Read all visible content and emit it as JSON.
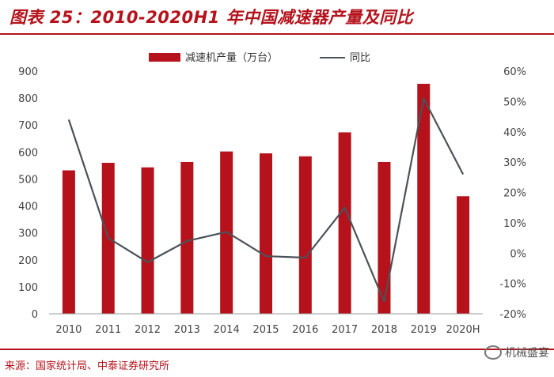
{
  "title": "图表 25：2010-2020H1 年中国减速器产量及同比",
  "source": "来源：国家统计局、中泰证券研究所",
  "watermark": "机械盛宴",
  "colors": {
    "bar": "#b5121b",
    "line": "#4a525a",
    "accent": "#b5121b"
  },
  "chart_data": {
    "type": "bar",
    "categories": [
      "2010",
      "2011",
      "2012",
      "2013",
      "2014",
      "2015",
      "2016",
      "2017",
      "2018",
      "2019",
      "2020H"
    ],
    "series": [
      {
        "name": "减速机产量（万台）",
        "type": "bar",
        "axis": "left",
        "values": [
          532,
          560,
          543,
          563,
          602,
          595,
          584,
          673,
          563,
          853,
          436
        ]
      },
      {
        "name": "同比",
        "type": "line",
        "axis": "right",
        "values": [
          44,
          5,
          -3,
          4,
          7,
          -1,
          -1.5,
          15,
          -16,
          51,
          26
        ]
      }
    ],
    "y_left": {
      "min": 0,
      "max": 900,
      "step": 100,
      "ticks": [
        "0",
        "100",
        "200",
        "300",
        "400",
        "500",
        "600",
        "700",
        "800",
        "900"
      ]
    },
    "y_right": {
      "min": -20,
      "max": 60,
      "step": 10,
      "ticks": [
        "-20%",
        "-10%",
        "0%",
        "10%",
        "20%",
        "30%",
        "40%",
        "50%",
        "60%"
      ]
    },
    "legend_position": "top-center",
    "grid": false
  }
}
